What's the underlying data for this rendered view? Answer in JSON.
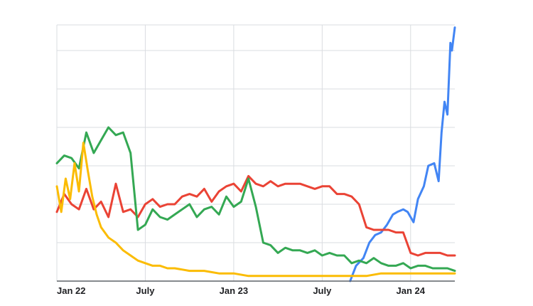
{
  "chart_data": {
    "type": "line",
    "title": "",
    "xlabel": "",
    "ylabel": "",
    "x_ticks": [
      "Jan 22",
      "July",
      "Jan 23",
      "July",
      "Jan 24"
    ],
    "x_range_months": [
      0,
      27
    ],
    "y_range": [
      0,
      100
    ],
    "y_gridlines": [
      15,
      30,
      45,
      60,
      75,
      90,
      100
    ],
    "grid": true,
    "legend": "none",
    "series": [
      {
        "color": "#4285f4",
        "t": [
          19.9,
          20.3,
          20.8,
          21.2,
          21.6,
          22.0,
          22.4,
          22.8,
          23.1,
          23.5,
          23.8,
          24.2,
          24.5,
          24.9,
          25.2,
          25.6,
          25.9,
          26.1,
          26.3,
          26.5,
          26.7,
          26.8,
          27.0
        ],
        "y": [
          0,
          6,
          9,
          15,
          18,
          19,
          22,
          26,
          27,
          28,
          27,
          23,
          32,
          37,
          45,
          46,
          39,
          58,
          70,
          65,
          93,
          90,
          99
        ]
      },
      {
        "color": "#ea4335",
        "t": [
          0,
          0.5,
          1,
          1.5,
          2,
          2.5,
          3,
          3.5,
          4,
          4.5,
          5,
          5.5,
          6,
          6.5,
          7,
          7.5,
          8,
          8.5,
          9,
          9.5,
          10,
          10.5,
          11,
          11.5,
          12,
          12.5,
          13,
          13.5,
          14,
          14.5,
          15,
          15.5,
          16,
          16.5,
          17,
          17.5,
          18,
          18.5,
          19,
          19.5,
          20,
          20.5,
          21,
          21.5,
          22,
          22.5,
          23,
          23.5,
          24,
          24.5,
          25,
          25.5,
          26,
          26.5,
          27
        ],
        "y": [
          27,
          34,
          30,
          28,
          36,
          28,
          31,
          25,
          38,
          27,
          28,
          25,
          30,
          32,
          29,
          30,
          30,
          33,
          34,
          33,
          36,
          31,
          35,
          37,
          38,
          35,
          41,
          38,
          37,
          39,
          37,
          38,
          38,
          38,
          37,
          36,
          37,
          37,
          34,
          34,
          33,
          30,
          21,
          20,
          20,
          20,
          19,
          19,
          11,
          10,
          11,
          11,
          11,
          10,
          10
        ]
      },
      {
        "color": "#34a853",
        "t": [
          0,
          0.5,
          1,
          1.5,
          2,
          2.5,
          3,
          3.5,
          4,
          4.5,
          5,
          5.5,
          6,
          6.5,
          7,
          7.5,
          8,
          8.5,
          9,
          9.5,
          10,
          10.5,
          11,
          11.5,
          12,
          12.5,
          13,
          13.5,
          14,
          14.5,
          15,
          15.5,
          16,
          16.5,
          17,
          17.5,
          18,
          18.5,
          19,
          19.5,
          20,
          20.5,
          21,
          21.5,
          22,
          22.5,
          23,
          23.5,
          24,
          24.5,
          25,
          25.5,
          26,
          26.5,
          27
        ],
        "y": [
          46,
          49,
          48,
          44,
          58,
          50,
          55,
          60,
          57,
          58,
          50,
          20,
          22,
          28,
          25,
          24,
          26,
          28,
          30,
          25,
          28,
          29,
          26,
          33,
          29,
          31,
          40,
          29,
          15,
          14,
          11,
          13,
          12,
          12,
          11,
          12,
          10,
          11,
          10,
          10,
          7,
          8,
          7,
          9,
          7,
          6,
          6,
          7,
          5,
          6,
          6,
          5,
          5,
          5,
          4
        ]
      },
      {
        "color": "#fbbc04",
        "t": [
          0,
          0.3,
          0.6,
          0.9,
          1.2,
          1.5,
          1.8,
          2.1,
          2.4,
          2.7,
          3,
          3.5,
          4,
          4.5,
          5,
          5.5,
          6,
          6.5,
          7,
          7.5,
          8,
          9,
          10,
          11,
          12,
          13,
          14,
          15,
          16,
          17,
          18,
          19,
          20,
          21,
          22,
          23,
          24,
          25,
          26,
          27
        ],
        "y": [
          37,
          27,
          40,
          32,
          46,
          35,
          54,
          43,
          33,
          26,
          21,
          17,
          15,
          12,
          10,
          8,
          7,
          6,
          6,
          5,
          5,
          4,
          4,
          3,
          3,
          2,
          2,
          2,
          2,
          2,
          2,
          2,
          2,
          2,
          3,
          3,
          3,
          3,
          3,
          3
        ]
      }
    ]
  }
}
